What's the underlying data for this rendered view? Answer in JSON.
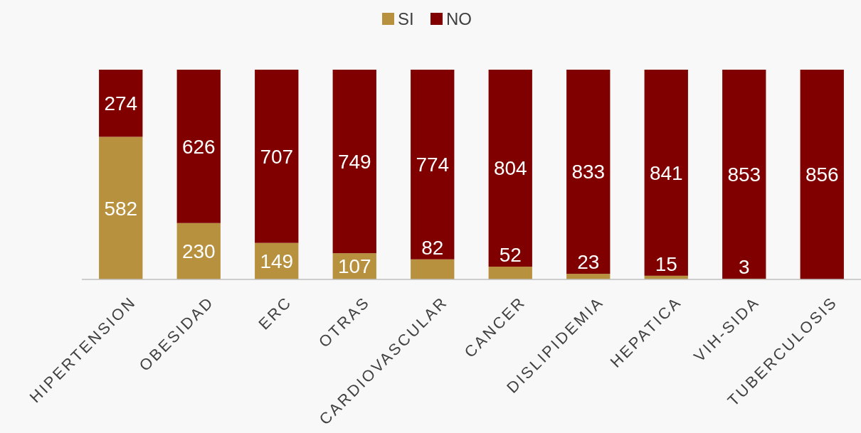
{
  "chart_data": {
    "type": "bar",
    "stacked": true,
    "legend": "top",
    "categories": [
      "HIPERTENSION",
      "OBESIDAD",
      "ERC",
      "OTRAS",
      "CARDIOVASCULAR",
      "CANCER",
      "DISLIPIDEMIA",
      "HEPATICA",
      "VIH-SIDA",
      "TUBERCULOSIS"
    ],
    "series": [
      {
        "name": "SI",
        "color": "#b8913f",
        "values": [
          582,
          230,
          149,
          107,
          82,
          52,
          23,
          15,
          3,
          0
        ],
        "value_labels": [
          "582",
          "230",
          "149",
          "107",
          "82",
          "52",
          "23",
          "15",
          "3",
          null
        ]
      },
      {
        "name": "NO",
        "color": "#800000",
        "values": [
          274,
          626,
          707,
          749,
          774,
          804,
          833,
          841,
          853,
          856
        ],
        "value_labels": [
          "274",
          "626",
          "707",
          "749",
          "774",
          "804",
          "833",
          "841",
          "853",
          "856"
        ]
      }
    ]
  }
}
